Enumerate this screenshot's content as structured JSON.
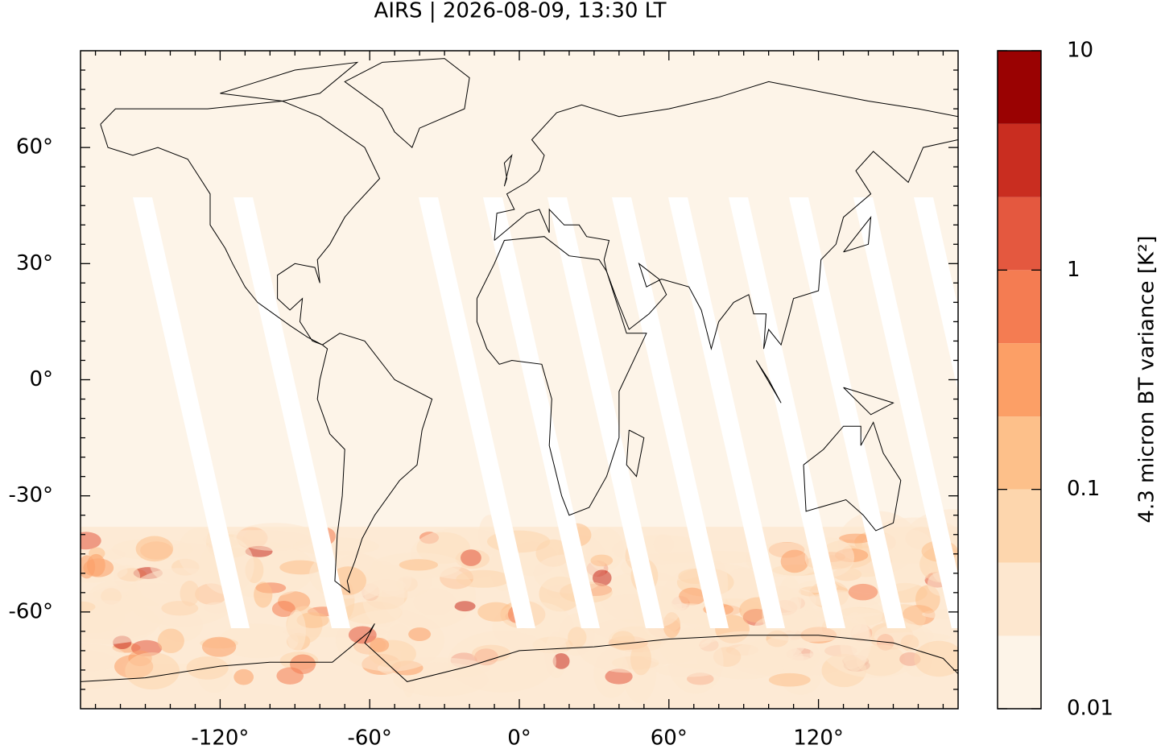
{
  "chart_data": {
    "type": "map",
    "title": "AIRS | 2026-08-09, 13:30 LT",
    "xlim": [
      -176,
      176
    ],
    "ylim": [
      -85,
      85
    ],
    "xticks": [
      {
        "value": -120,
        "label": "-120°"
      },
      {
        "value": -60,
        "label": "-60°"
      },
      {
        "value": 0,
        "label": "0°"
      },
      {
        "value": 60,
        "label": "60°"
      },
      {
        "value": 120,
        "label": "120°"
      }
    ],
    "yticks": [
      {
        "value": 60,
        "label": "60°"
      },
      {
        "value": 30,
        "label": "30°"
      },
      {
        "value": 0,
        "label": "0°"
      },
      {
        "value": -30,
        "label": "-30°"
      },
      {
        "value": -60,
        "label": "-60°"
      }
    ],
    "xminorticks": [
      -170,
      -160,
      -150,
      -140,
      -130,
      -110,
      -100,
      -90,
      -80,
      -70,
      -50,
      -40,
      -30,
      -20,
      -10,
      10,
      20,
      30,
      40,
      50,
      70,
      80,
      90,
      100,
      110,
      130,
      140,
      150,
      160,
      170
    ],
    "yminorticks": [
      80,
      75,
      70,
      65,
      55,
      50,
      45,
      40,
      35,
      25,
      20,
      15,
      10,
      5,
      -5,
      -10,
      -15,
      -20,
      -25,
      -35,
      -40,
      -45,
      -50,
      -55,
      -65,
      -70,
      -75,
      -80
    ],
    "colorbar": {
      "label": "4.3 micron BT variance [K²]",
      "scale": "log",
      "lim": [
        0.01,
        10
      ],
      "ticks": [
        0.01,
        0.1,
        1,
        10
      ],
      "levels": [
        0.01,
        0.0215,
        0.0464,
        0.1,
        0.215,
        0.464,
        1,
        2.15,
        4.64,
        10
      ],
      "colors": [
        "#fdf4e8",
        "#fde7cf",
        "#fdd6ad",
        "#fdc08a",
        "#fc9f66",
        "#f47c52",
        "#e4583f",
        "#c92d20",
        "#9a0202"
      ]
    }
  }
}
